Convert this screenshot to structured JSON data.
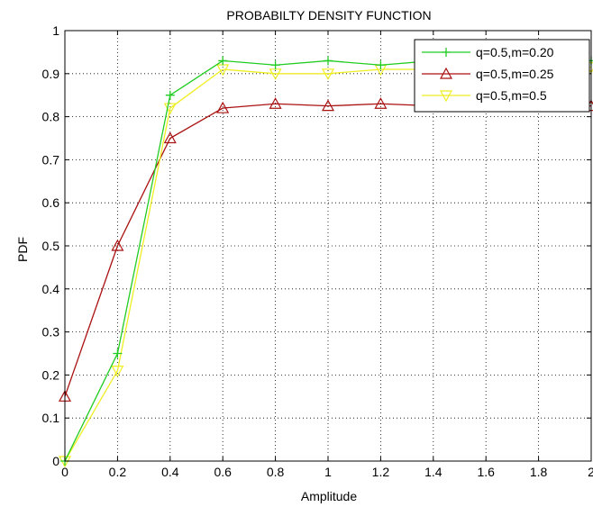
{
  "chart_data": {
    "type": "line",
    "title": "PROBABILTY DENSITY FUNCTION",
    "xlabel": "Amplitude",
    "ylabel": "PDF",
    "xlim": [
      0,
      2
    ],
    "ylim": [
      0,
      1
    ],
    "xticks": [
      "0",
      "0.2",
      "0.4",
      "0.6",
      "0.8",
      "1",
      "1.2",
      "1.4",
      "1.6",
      "1.8",
      "2"
    ],
    "yticks": [
      "0",
      "0.1",
      "0.2",
      "0.3",
      "0.4",
      "0.5",
      "0.6",
      "0.7",
      "0.8",
      "0.9",
      "1"
    ],
    "grid": true,
    "legend_position": "top-right",
    "x": [
      0,
      0.2,
      0.4,
      0.6,
      0.8,
      1.0,
      1.2,
      1.4,
      1.6,
      1.8,
      2.0
    ],
    "series": [
      {
        "name": "q=0.5,m=0.20",
        "color": "#22cc22",
        "marker": "plus",
        "values": [
          0,
          0.25,
          0.85,
          0.93,
          0.92,
          0.93,
          0.92,
          0.93,
          0.93,
          0.93,
          0.93
        ]
      },
      {
        "name": "q=0.5,m=0.25",
        "color": "#aa1111",
        "marker": "triangle",
        "values": [
          0.15,
          0.5,
          0.75,
          0.82,
          0.83,
          0.825,
          0.83,
          0.825,
          0.825,
          0.825,
          0.825
        ]
      },
      {
        "name": "q=0.5,m=0.5",
        "color": "#eeee22",
        "marker": "triangle-down",
        "values": [
          0,
          0.21,
          0.82,
          0.91,
          0.9,
          0.9,
          0.91,
          0.91,
          0.91,
          0.91,
          0.915
        ]
      }
    ]
  }
}
